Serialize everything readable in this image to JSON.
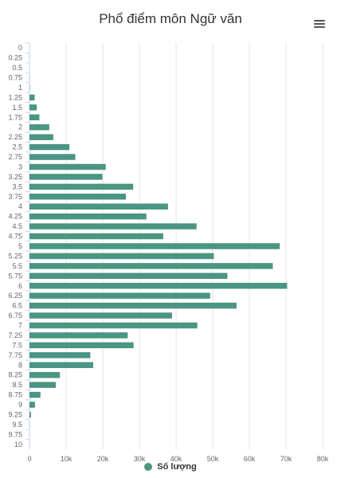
{
  "chart_data": {
    "type": "bar",
    "orientation": "horizontal",
    "title": "Phổ điểm môn Ngữ văn",
    "xlabel": "",
    "ylabel": "",
    "categories": [
      "0",
      "0.25",
      "0.5",
      "0.75",
      "1",
      "1.25",
      "1.5",
      "1.75",
      "2",
      "2.25",
      "2.5",
      "2.75",
      "3",
      "3.25",
      "3.5",
      "3.75",
      "4",
      "4.25",
      "4.5",
      "4.75",
      "5",
      "5.25",
      "5.5",
      "5.75",
      "6",
      "6.25",
      "6.5",
      "6.75",
      "7",
      "7.25",
      "7.5",
      "7.75",
      "8",
      "8.25",
      "8.5",
      "8.75",
      "9",
      "9.25",
      "9.5",
      "9.75",
      "10"
    ],
    "series": [
      {
        "name": "Số lượng",
        "values": [
          20,
          20,
          30,
          50,
          100,
          1400,
          2000,
          2700,
          5400,
          6500,
          10900,
          12500,
          20800,
          19900,
          28300,
          26300,
          37800,
          31900,
          45600,
          36500,
          68300,
          50300,
          66400,
          54000,
          70300,
          49300,
          56500,
          38900,
          45800,
          26800,
          28400,
          16600,
          17400,
          8300,
          7200,
          3000,
          1500,
          400,
          50,
          20,
          10
        ]
      }
    ],
    "value_axis": {
      "min": 0,
      "max": 80000,
      "tick_interval": 10000,
      "tick_labels": [
        "0",
        "10k",
        "20k",
        "30k",
        "40k",
        "50k",
        "60k",
        "70k",
        "80k"
      ]
    },
    "grid": true,
    "legend": "bottom-center",
    "colors": {
      "bar": "#4a9583",
      "grid": "#e6e6e6",
      "axis": "#ccd6eb",
      "text": "#333333"
    }
  },
  "ui": {
    "menu_icon": "hamburger-menu-icon"
  }
}
